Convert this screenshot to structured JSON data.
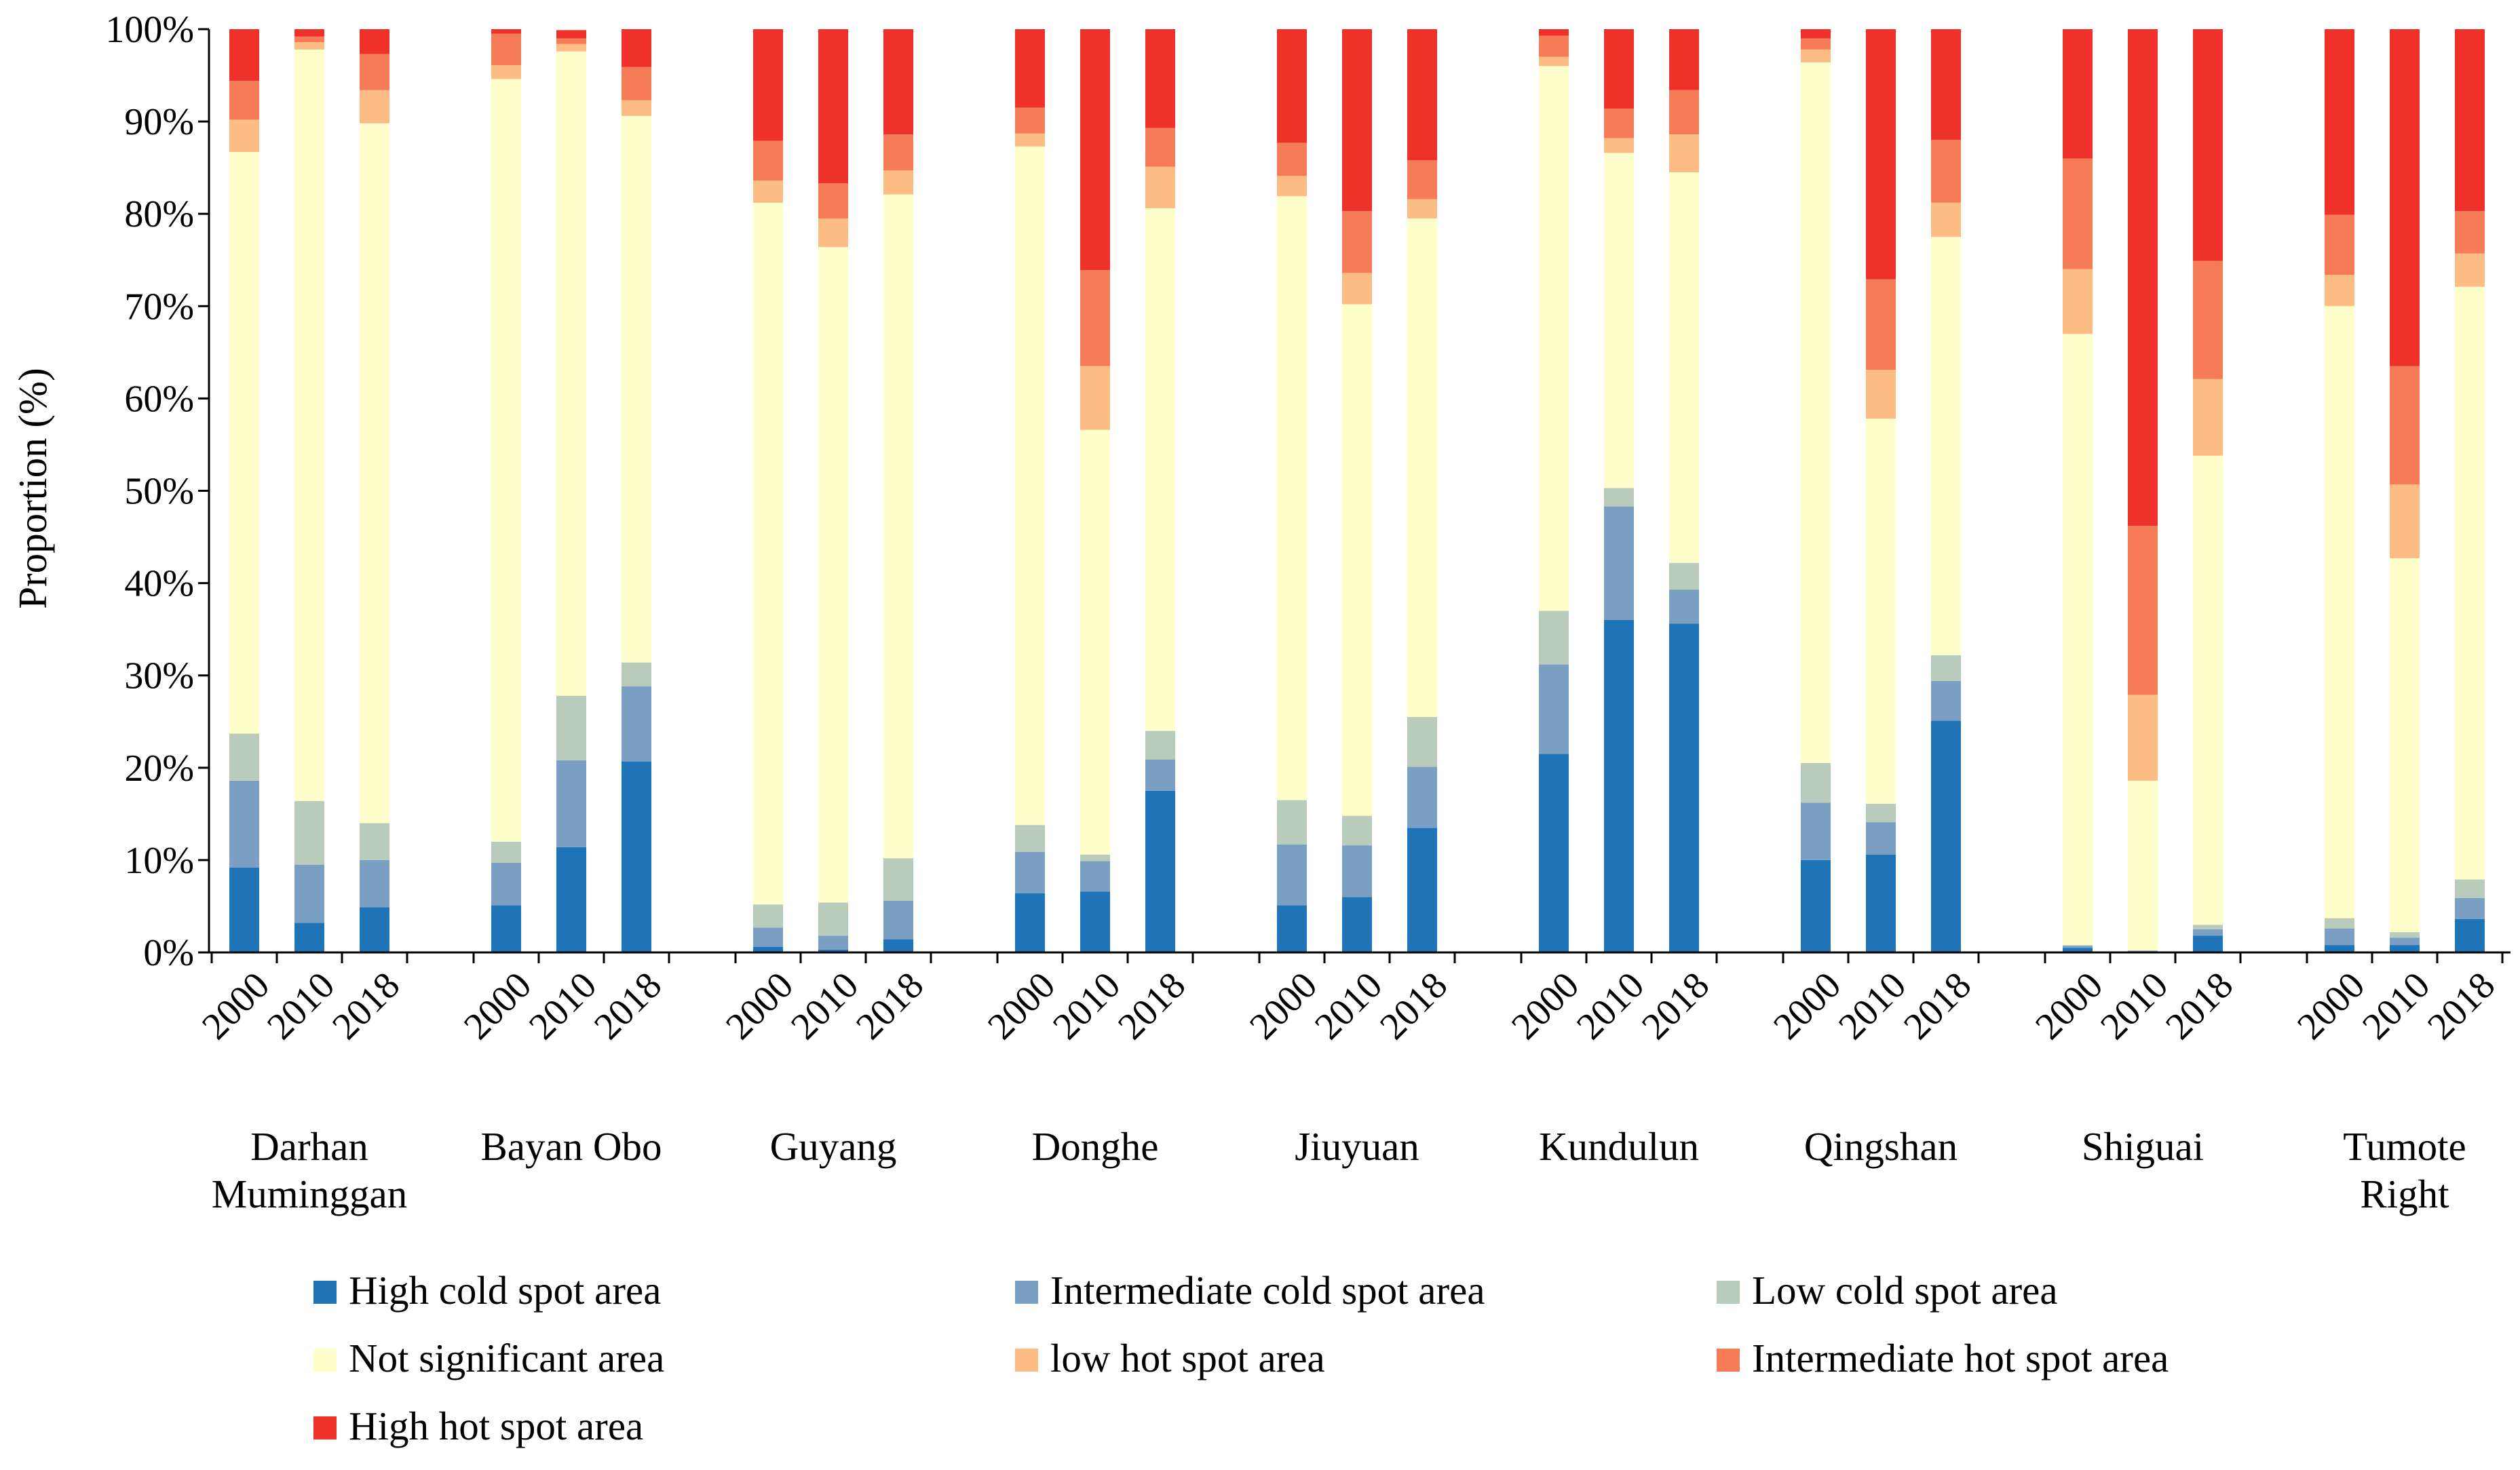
{
  "chart_data": {
    "type": "bar",
    "stacked": true,
    "ylabel": "Proportion (%)",
    "xlabel": "",
    "ylim": [
      0,
      100
    ],
    "ytick_labels": [
      "0%",
      "10%",
      "20%",
      "30%",
      "40%",
      "50%",
      "60%",
      "70%",
      "80%",
      "90%",
      "100%"
    ],
    "years": [
      "2000",
      "2010",
      "2018"
    ],
    "groups": [
      {
        "name": "Darhan Muminggan",
        "label_lines": [
          "Darhan",
          "Muminggan"
        ]
      },
      {
        "name": "Bayan Obo",
        "label_lines": [
          "Bayan Obo"
        ]
      },
      {
        "name": "Guyang",
        "label_lines": [
          "Guyang"
        ]
      },
      {
        "name": "Donghe",
        "label_lines": [
          "Donghe"
        ]
      },
      {
        "name": "Jiuyuan",
        "label_lines": [
          "Jiuyuan"
        ]
      },
      {
        "name": "Kundulun",
        "label_lines": [
          "Kundulun"
        ]
      },
      {
        "name": "Qingshan",
        "label_lines": [
          "Qingshan"
        ]
      },
      {
        "name": "Shiguai",
        "label_lines": [
          "Shiguai"
        ]
      },
      {
        "name": "Tumote Right",
        "label_lines": [
          "Tumote",
          "Right"
        ]
      }
    ],
    "series": [
      {
        "name": "High cold spot area",
        "color": "#1f74b8",
        "values": [
          [
            9.2,
            3.2,
            4.9
          ],
          [
            5.1,
            11.4,
            20.7
          ],
          [
            0.6,
            0.3,
            1.4
          ],
          [
            6.4,
            6.6,
            17.5
          ],
          [
            5.1,
            6.0,
            13.5
          ],
          [
            21.5,
            36.0,
            35.6
          ],
          [
            10.0,
            10.6,
            25.1
          ],
          [
            0.5,
            0.1,
            1.8
          ],
          [
            0.8,
            0.8,
            3.6
          ]
        ]
      },
      {
        "name": "Intermediate cold spot area",
        "color": "#7a9fc2",
        "values": [
          [
            9.4,
            6.3,
            5.1
          ],
          [
            4.6,
            9.4,
            8.1
          ],
          [
            2.1,
            1.5,
            4.2
          ],
          [
            4.5,
            3.3,
            3.4
          ],
          [
            6.6,
            5.6,
            6.6
          ],
          [
            9.7,
            12.3,
            3.7
          ],
          [
            6.2,
            3.5,
            4.3
          ],
          [
            0.2,
            0.1,
            0.7
          ],
          [
            1.8,
            0.8,
            2.3
          ]
        ]
      },
      {
        "name": "Low cold spot area",
        "color": "#b9cbbb",
        "values": [
          [
            5.1,
            6.9,
            4.0
          ],
          [
            2.3,
            7.0,
            2.6
          ],
          [
            2.5,
            3.6,
            4.6
          ],
          [
            2.9,
            0.7,
            3.1
          ],
          [
            4.8,
            3.2,
            5.4
          ],
          [
            5.8,
            2.0,
            2.9
          ],
          [
            4.3,
            2.0,
            2.8
          ],
          [
            0.1,
            0.0,
            0.5
          ],
          [
            1.1,
            0.6,
            2.0
          ]
        ]
      },
      {
        "name": "Not significant area",
        "color": "#feffca",
        "values": [
          [
            63.0,
            81.4,
            75.8
          ],
          [
            82.6,
            69.8,
            59.2
          ],
          [
            76.0,
            71.0,
            71.9
          ],
          [
            73.5,
            46.0,
            56.6
          ],
          [
            65.4,
            55.4,
            54.0
          ],
          [
            59.0,
            36.3,
            42.3
          ],
          [
            75.9,
            41.7,
            45.3
          ],
          [
            66.2,
            18.4,
            50.8
          ],
          [
            66.3,
            40.5,
            64.2
          ]
        ]
      },
      {
        "name": "low hot spot area",
        "color": "#fdbc84",
        "values": [
          [
            3.5,
            0.8,
            3.6
          ],
          [
            1.5,
            0.8,
            1.7
          ],
          [
            2.4,
            3.1,
            2.6
          ],
          [
            1.4,
            6.9,
            4.5
          ],
          [
            2.2,
            3.4,
            2.1
          ],
          [
            1.0,
            1.6,
            4.1
          ],
          [
            1.4,
            5.3,
            3.7
          ],
          [
            7.0,
            9.3,
            8.3
          ],
          [
            3.4,
            8.0,
            3.6
          ]
        ]
      },
      {
        "name": "Intermediate hot spot area",
        "color": "#f57c56",
        "values": [
          [
            4.2,
            0.6,
            3.9
          ],
          [
            3.4,
            0.6,
            3.6
          ],
          [
            4.3,
            3.8,
            3.9
          ],
          [
            2.8,
            10.4,
            4.2
          ],
          [
            3.6,
            6.7,
            4.2
          ],
          [
            2.3,
            3.2,
            4.8
          ],
          [
            1.2,
            9.8,
            6.8
          ],
          [
            12.0,
            18.3,
            12.8
          ],
          [
            6.5,
            12.8,
            4.6
          ]
        ]
      },
      {
        "name": "High hot spot area",
        "color": "#ee3229",
        "values": [
          [
            5.6,
            0.8,
            2.7
          ],
          [
            0.5,
            0.9,
            4.1
          ],
          [
            12.1,
            16.7,
            11.4
          ],
          [
            8.5,
            26.1,
            10.7
          ],
          [
            12.3,
            19.7,
            14.2
          ],
          [
            0.7,
            8.6,
            6.6
          ],
          [
            1.0,
            27.1,
            12.0
          ],
          [
            14.0,
            53.8,
            25.1
          ],
          [
            20.1,
            36.5,
            19.7
          ]
        ]
      }
    ],
    "legend_position": "bottom",
    "grid": false
  }
}
